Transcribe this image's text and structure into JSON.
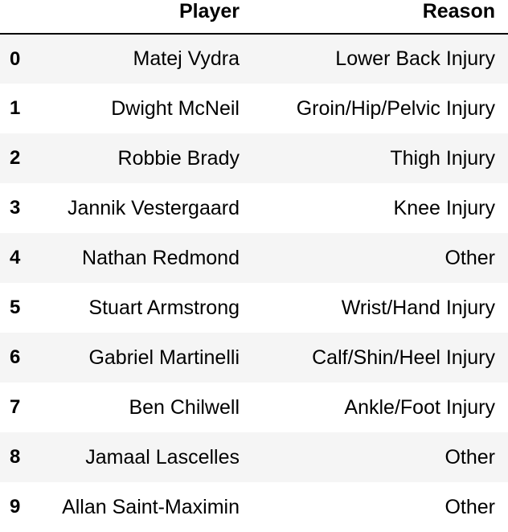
{
  "table": {
    "columns": [
      "Player",
      "Reason"
    ],
    "rows": [
      {
        "index": "0",
        "player": "Matej Vydra",
        "reason": "Lower Back Injury"
      },
      {
        "index": "1",
        "player": "Dwight McNeil",
        "reason": "Groin/Hip/Pelvic Injury"
      },
      {
        "index": "2",
        "player": "Robbie Brady",
        "reason": "Thigh Injury"
      },
      {
        "index": "3",
        "player": "Jannik Vestergaard",
        "reason": "Knee Injury"
      },
      {
        "index": "4",
        "player": "Nathan Redmond",
        "reason": "Other"
      },
      {
        "index": "5",
        "player": "Stuart Armstrong",
        "reason": "Wrist/Hand Injury"
      },
      {
        "index": "6",
        "player": "Gabriel Martinelli",
        "reason": "Calf/Shin/Heel Injury"
      },
      {
        "index": "7",
        "player": "Ben Chilwell",
        "reason": "Ankle/Foot Injury"
      },
      {
        "index": "8",
        "player": "Jamaal Lascelles",
        "reason": "Other"
      },
      {
        "index": "9",
        "player": "Allan Saint-Maximin",
        "reason": "Other"
      }
    ]
  }
}
